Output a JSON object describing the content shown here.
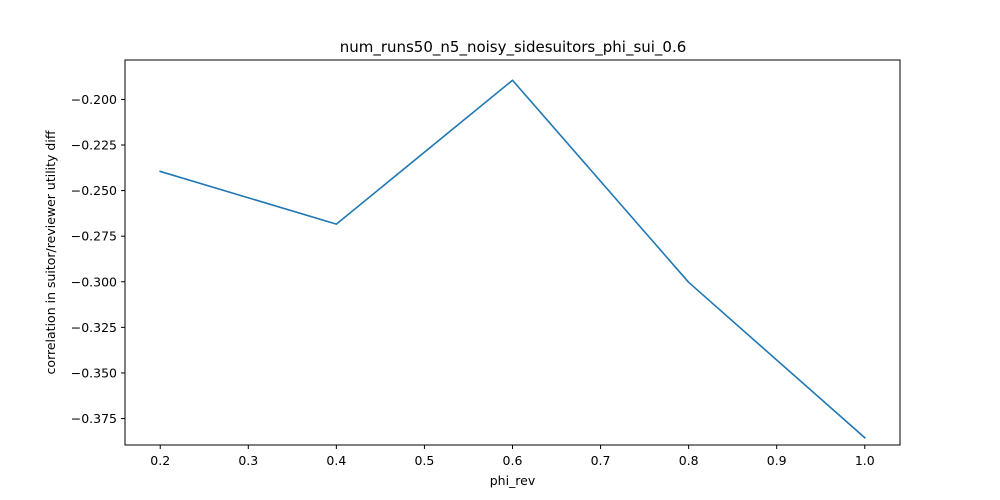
{
  "chart_data": {
    "type": "line",
    "title": "num_runs50_n5_noisy_sidesuitors_phi_sui_0.6",
    "xlabel": "phi_rev",
    "ylabel": "correlation in suitor/reviewer utility diff",
    "x": [
      0.2,
      0.4,
      0.6,
      0.8,
      1.0
    ],
    "series": [
      {
        "values": [
          -0.2395,
          -0.2684,
          -0.1895,
          -0.3003,
          -0.3855
        ],
        "color": "#1f77b4"
      }
    ],
    "xlim": [
      0.16,
      1.04
    ],
    "ylim": [
      -0.3895,
      -0.1784
    ],
    "xticks": [
      0.2,
      0.3,
      0.4,
      0.5,
      0.6,
      0.7,
      0.8,
      0.9,
      1.0
    ],
    "xtick_labels": [
      "0.2",
      "0.3",
      "0.4",
      "0.5",
      "0.6",
      "0.7",
      "0.8",
      "0.9",
      "1.0"
    ],
    "yticks": [
      -0.2,
      -0.225,
      -0.25,
      -0.275,
      -0.3,
      -0.325,
      -0.35,
      -0.375
    ],
    "ytick_labels": [
      "−0.200",
      "−0.225",
      "−0.250",
      "−0.275",
      "−0.300",
      "−0.325",
      "−0.350",
      "−0.375"
    ],
    "grid": false,
    "legend": false
  }
}
